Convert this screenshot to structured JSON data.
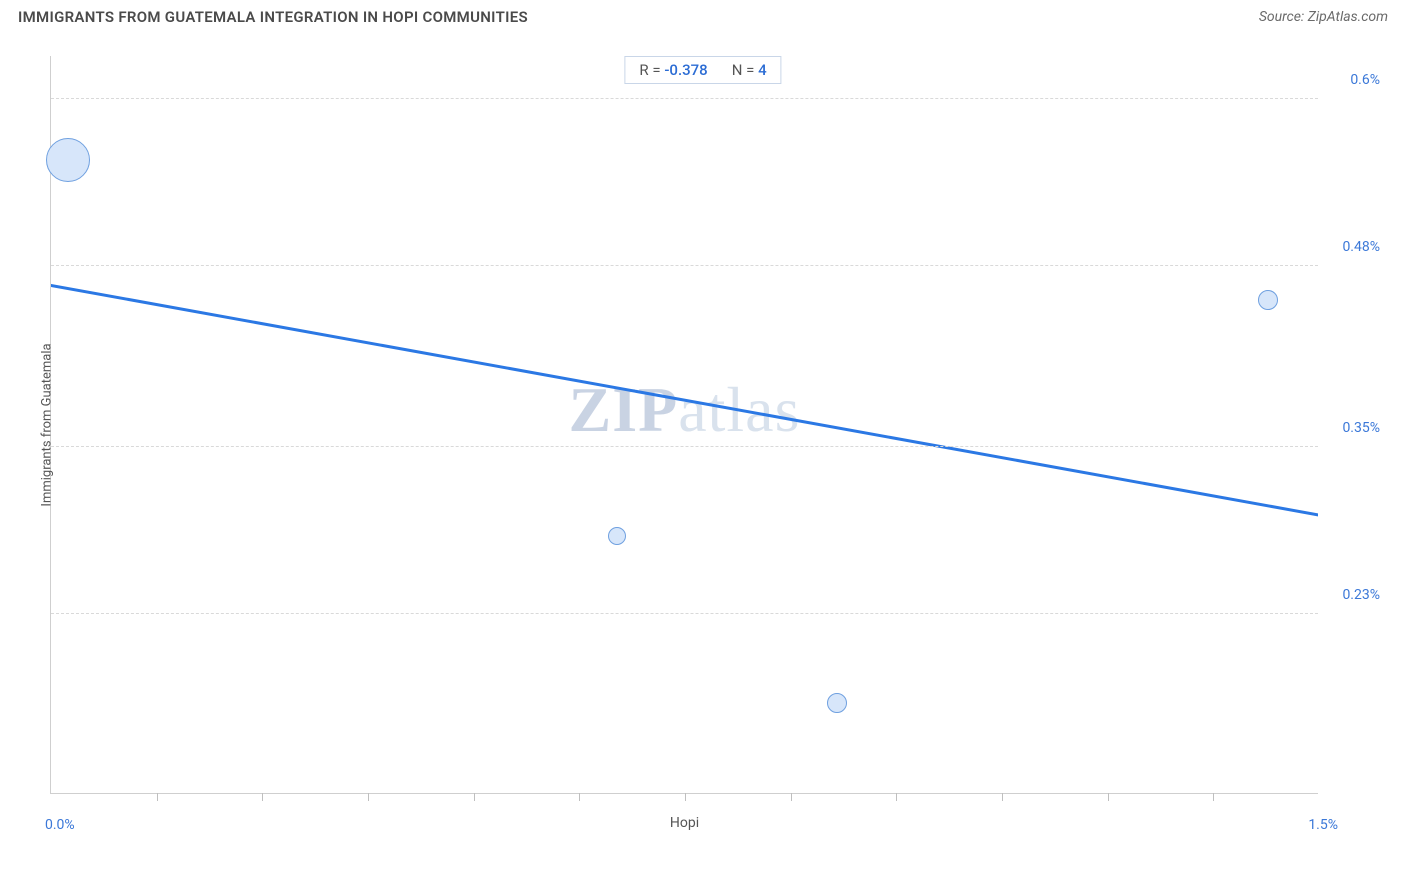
{
  "header": {
    "title": "IMMIGRANTS FROM GUATEMALA INTEGRATION IN HOPI COMMUNITIES",
    "source": "Source: ZipAtlas.com"
  },
  "chart": {
    "type": "scatter",
    "x_axis": {
      "label": "Hopi",
      "min": 0.0,
      "max": 1.5,
      "tick_min_label": "0.0%",
      "tick_max_label": "1.5%",
      "minor_tick_count": 12
    },
    "y_axis": {
      "label": "Immigrants from Guatemala",
      "min": 0.1,
      "max": 0.63,
      "grid_values": [
        0.23,
        0.35,
        0.48,
        0.6
      ],
      "grid_labels": [
        "0.23%",
        "0.35%",
        "0.48%",
        "0.6%"
      ]
    },
    "stats": {
      "r_label": "R =",
      "r_value": "-0.378",
      "n_label": "N =",
      "n_value": "4"
    },
    "points": [
      {
        "x": 0.02,
        "y": 0.555,
        "size": 44
      },
      {
        "x": 0.67,
        "y": 0.285,
        "size": 18
      },
      {
        "x": 0.93,
        "y": 0.165,
        "size": 20
      },
      {
        "x": 1.44,
        "y": 0.455,
        "size": 20
      }
    ],
    "trend_line": {
      "x1": 0.0,
      "y1": 0.465,
      "x2": 1.5,
      "y2": 0.3,
      "color": "#2b78e4",
      "width": 3
    },
    "colors": {
      "bubble_fill": "#d7e6fa",
      "bubble_stroke": "#6fa0e0",
      "axis_line": "#cfcfcf",
      "grid_line": "#d9d9d9",
      "tick_label": "#3b78d8",
      "axis_label": "#555555",
      "background": "#ffffff"
    },
    "watermark": {
      "prefix": "ZIP",
      "suffix": "atlas"
    }
  }
}
